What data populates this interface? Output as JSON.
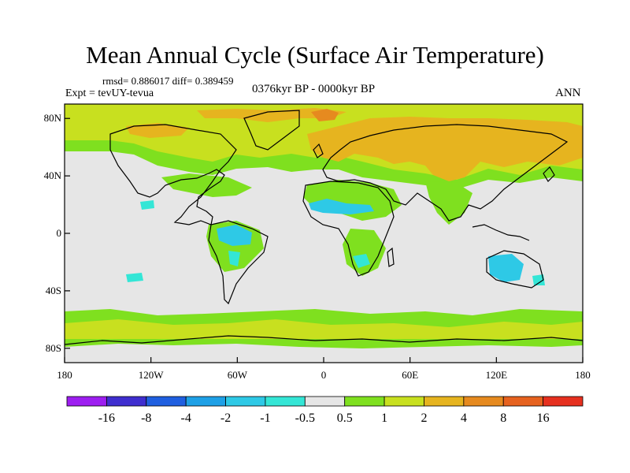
{
  "title": "Mean Annual Cycle (Surface Air Temperature)",
  "stats": "rmsd= 0.886017 diff= 0.389459",
  "experiment": "Expt = tevUY-tevua",
  "period": "0376kyr BP - 0000kyr BP",
  "season": "ANN",
  "map": {
    "background_color": "#e6e6e6",
    "coastline_color": "#000000",
    "lon_range": [
      -180,
      180
    ],
    "lat_range": [
      -90,
      90
    ],
    "lat_ticks": [
      {
        "lat": 80,
        "label": "80N"
      },
      {
        "lat": 40,
        "label": "40N"
      },
      {
        "lat": 0,
        "label": "0"
      },
      {
        "lat": -40,
        "label": "40S"
      },
      {
        "lat": -80,
        "label": "80S"
      }
    ],
    "lon_ticks": [
      {
        "lon": -180,
        "label": "180"
      },
      {
        "lon": -120,
        "label": "120W"
      },
      {
        "lon": -60,
        "label": "60W"
      },
      {
        "lon": 0,
        "label": "0"
      },
      {
        "lon": 60,
        "label": "60E"
      },
      {
        "lon": 120,
        "label": "120E"
      },
      {
        "lon": 180,
        "label": "180"
      }
    ]
  },
  "colorbar": {
    "colors": [
      "#9d1ef0",
      "#3f2ecf",
      "#1f5fe0",
      "#1ea0e6",
      "#2ec9e6",
      "#34e6d6",
      "#e6e6e6",
      "#7fe01f",
      "#c8e01f",
      "#e6b41f",
      "#e68a1f",
      "#e6621f",
      "#e6301f"
    ],
    "labels": [
      "-16",
      "-8",
      "-4",
      "-2",
      "-1",
      "-0.5",
      "0.5",
      "1",
      "2",
      "4",
      "8",
      "16"
    ]
  }
}
